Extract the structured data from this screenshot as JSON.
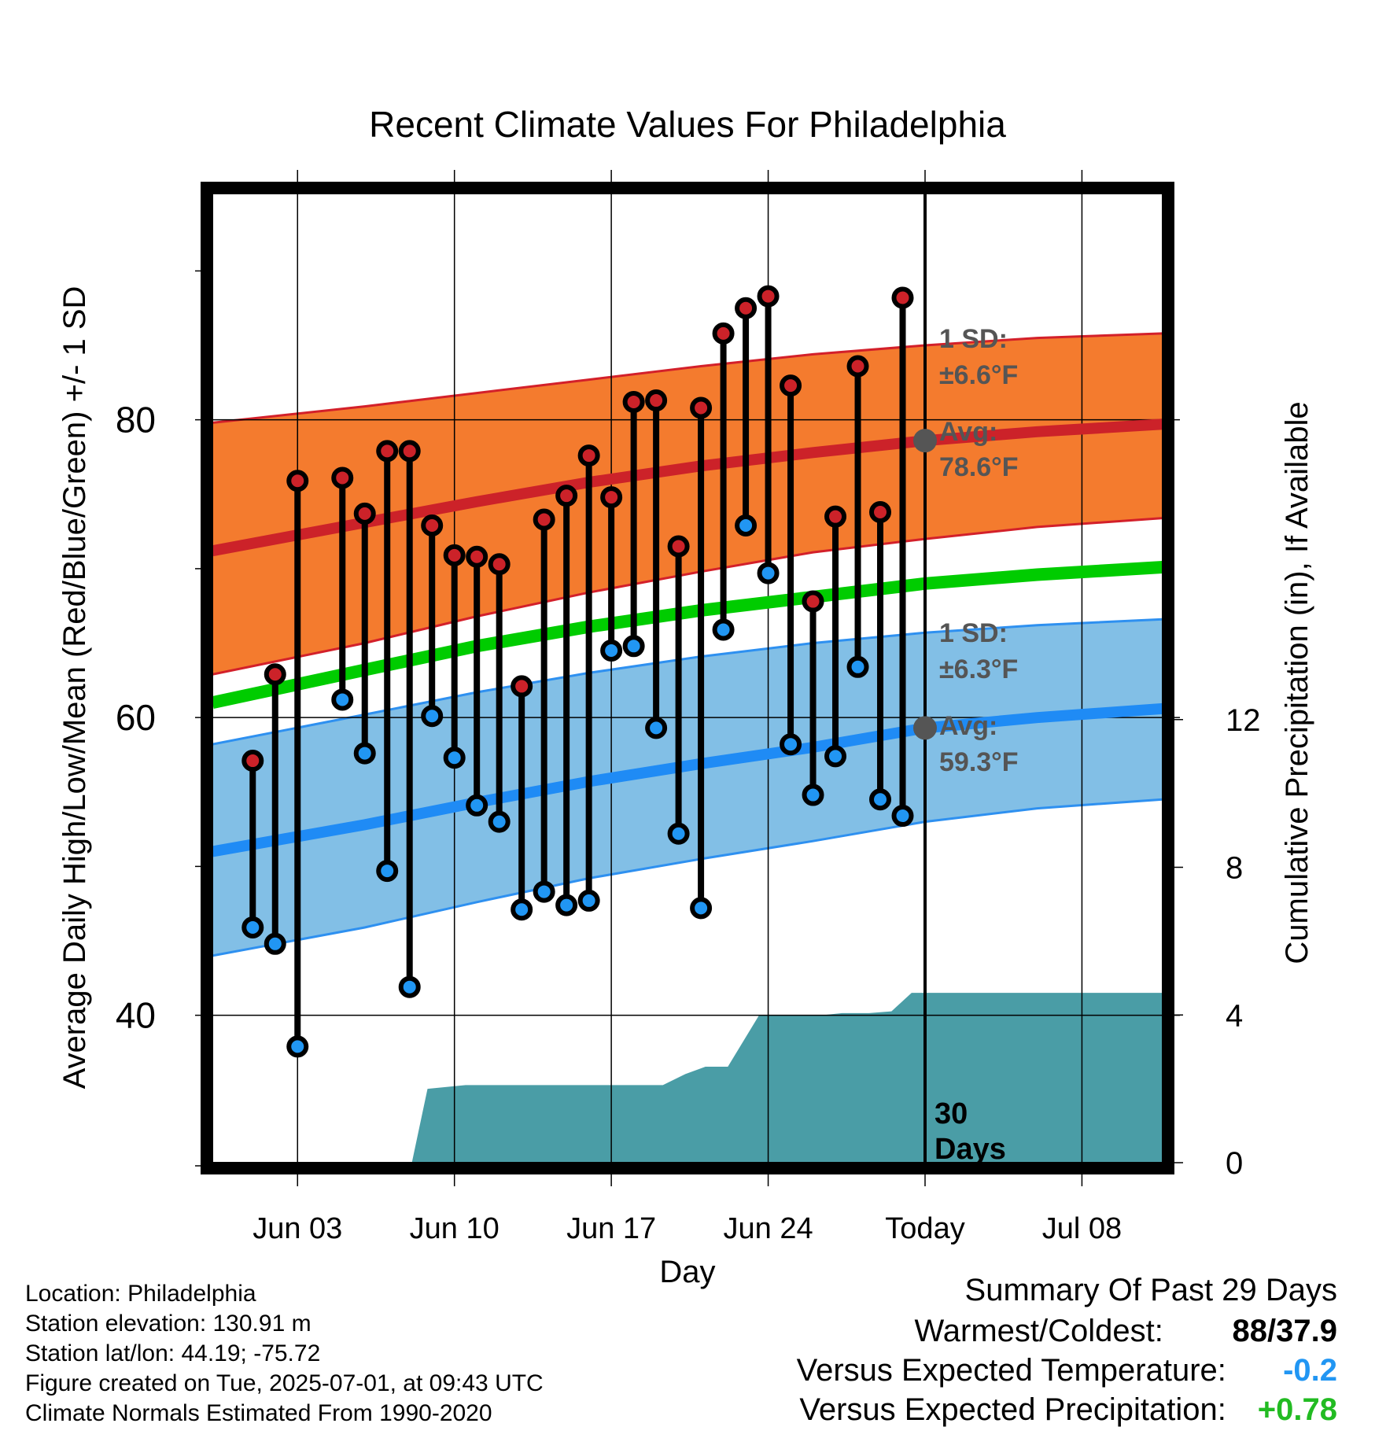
{
  "chart_data": {
    "type": "line",
    "title": "Recent Climate Values For Philadelphia",
    "xlabel": "Day",
    "ylabel": "Average Daily High/Low/Mean (Red/Blue/Green) +/- 1 SD",
    "y2label": "Cumulative Precipitation (in), If Available",
    "x_range": [
      -1.8,
      40.6
    ],
    "ylim": [
      30.1,
      95.2
    ],
    "y2lim": [
      0,
      26.25
    ],
    "y_ticks": [
      40,
      60,
      80
    ],
    "y_tick_labels": [
      "40",
      "60",
      "80"
    ],
    "y2_ticks": [
      0,
      4,
      8,
      12
    ],
    "y2_tick_labels": [
      "0",
      "4",
      "8",
      "12"
    ],
    "x_ticks": [
      2,
      9,
      16,
      23,
      30,
      37
    ],
    "x_tick_labels": [
      "Jun 03",
      "Jun 10",
      "Jun 17",
      "Jun 24",
      "Today",
      "Jul 08"
    ],
    "today_x": 30,
    "today_label": "30\nDays",
    "grid": true,
    "daily": {
      "x": [
        0,
        1,
        2,
        4,
        5,
        6,
        7,
        8,
        9,
        10,
        11,
        12,
        13,
        14,
        15,
        16,
        17,
        18,
        19,
        20,
        21,
        22,
        23,
        24,
        25,
        26,
        27,
        28,
        29
      ],
      "high": [
        57.1,
        62.9,
        75.9,
        76.1,
        73.7,
        77.9,
        77.9,
        72.9,
        70.9,
        70.8,
        70.3,
        62.1,
        73.3,
        74.9,
        77.6,
        74.8,
        81.2,
        81.3,
        71.5,
        80.8,
        85.8,
        87.5,
        88.3,
        82.3,
        67.8,
        73.5,
        83.6,
        73.8,
        88.2
      ],
      "low": [
        45.9,
        44.8,
        37.9,
        61.2,
        57.6,
        49.7,
        41.9,
        60.1,
        57.3,
        54.1,
        53.0,
        47.1,
        48.3,
        47.4,
        47.7,
        64.5,
        64.8,
        59.3,
        52.2,
        47.2,
        65.9,
        72.9,
        69.7,
        58.2,
        54.8,
        57.4,
        63.4,
        54.5,
        53.4
      ],
      "low_colors": [
        "blue",
        "blue",
        "blue",
        "blue",
        "blue",
        "blue",
        "blue",
        "blue",
        "blue",
        "blue",
        "blue",
        "blue",
        "blue",
        "blue",
        "blue",
        "blue",
        "blue",
        "blue",
        "blue",
        "blue",
        "blue",
        "blue",
        "blue",
        "blue",
        "blue",
        "blue",
        "blue",
        "blue",
        "blue"
      ]
    },
    "normals": {
      "x": [
        -1.8,
        5,
        10,
        15,
        20,
        25,
        30,
        35,
        40.6
      ],
      "high_avg": [
        71.2,
        73.1,
        74.5,
        75.8,
        76.9,
        77.8,
        78.6,
        79.2,
        79.7
      ],
      "high_upper": [
        79.8,
        80.9,
        81.8,
        82.7,
        83.6,
        84.4,
        85.0,
        85.5,
        85.8
      ],
      "high_lower": [
        62.9,
        65.0,
        66.8,
        68.4,
        69.8,
        71.1,
        72.0,
        72.8,
        73.4
      ],
      "mean": [
        61.0,
        63.2,
        64.8,
        66.1,
        67.2,
        68.1,
        69.0,
        69.6,
        70.1
      ],
      "low_avg": [
        51.0,
        52.8,
        54.3,
        55.7,
        56.9,
        58.0,
        59.3,
        60.0,
        60.6
      ],
      "low_upper": [
        58.2,
        60.2,
        61.7,
        63.0,
        64.1,
        65.0,
        65.7,
        66.2,
        66.6
      ],
      "low_lower": [
        44.0,
        45.9,
        47.6,
        49.2,
        50.5,
        51.7,
        53.0,
        53.9,
        54.5
      ]
    },
    "precipitation": {
      "x": [
        6.1,
        7.1,
        7.8,
        9.5,
        15.5,
        17.2,
        18.3,
        19.3,
        20.2,
        21.2,
        22.6,
        24.3,
        25.5,
        26.3,
        27.5,
        28.5,
        29.4,
        40.6
      ],
      "values": [
        0,
        0,
        2.0,
        2.1,
        2.1,
        2.1,
        2.1,
        2.4,
        2.6,
        2.6,
        4.0,
        4.0,
        4.0,
        4.05,
        4.05,
        4.1,
        4.6,
        4.6
      ]
    },
    "annotations": {
      "high_sd_label": "1 SD:",
      "high_sd_value": "±6.6°F",
      "high_avg_label": "Avg:",
      "high_avg_value": "78.6°F",
      "high_avg_at_today": 78.6,
      "low_sd_label": "1 SD:",
      "low_sd_value": "±6.3°F",
      "low_avg_label": "Avg:",
      "low_avg_value": "59.3°F",
      "low_avg_at_today": 59.3
    },
    "colors": {
      "high_band": "#f47b2e",
      "high_band_edge": "#d3202a",
      "high_avg": "#cc2229",
      "low_band": "#82bfe6",
      "low_band_edge": "#2e90f0",
      "low_avg": "#1f8bf5",
      "mean": "#00cc00",
      "precip": "#4a9da6",
      "high_dot": "#cc2229",
      "low_dot": "#2196f3",
      "annotation": "#555555"
    }
  },
  "footer": {
    "location": "Location: Philadelphia",
    "elevation": "Station elevation: 130.91 m",
    "latlon": "Station lat/lon: 44.19; -75.72",
    "created": "Figure created on Tue, 2025-07-01, at 09:43 UTC",
    "normals": "Climate Normals Estimated From 1990-2020"
  },
  "summary": {
    "title": "Summary Of Past 29 Days",
    "warmest_label": "Warmest/Coldest:",
    "warmest_value": "88/37.9",
    "temp_label": "Versus Expected Temperature:",
    "temp_value": "-0.2",
    "temp_color": "#2196f3",
    "precip_label": "Versus Expected Precipitation:",
    "precip_value": "+0.78",
    "precip_color": "#22bb22"
  }
}
